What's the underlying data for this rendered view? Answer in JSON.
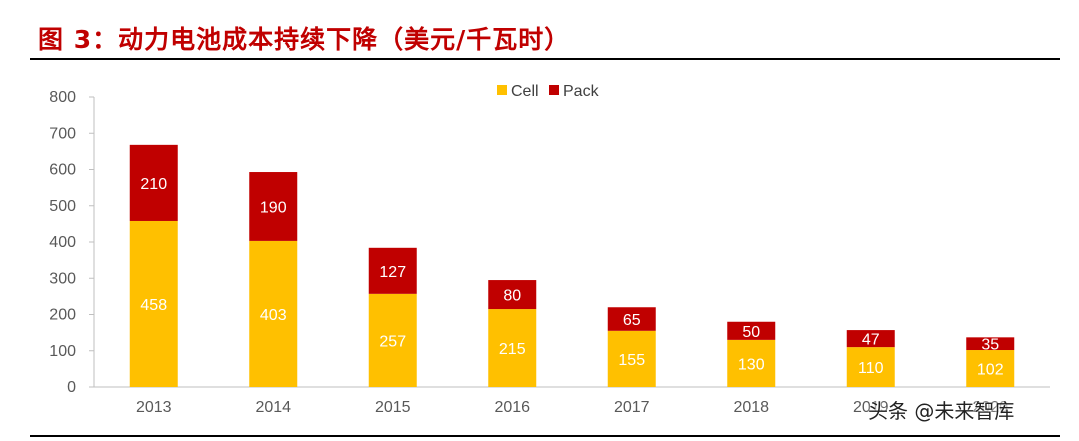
{
  "header": {
    "title": "图 3：动力电池成本持续下降（美元/千瓦时）"
  },
  "watermark": {
    "text": "头条 @未来智库"
  },
  "chart_data": {
    "type": "bar",
    "stacked": true,
    "categories": [
      "2013",
      "2014",
      "2015",
      "2016",
      "2017",
      "2018",
      "2019",
      "2020"
    ],
    "series": [
      {
        "name": "Cell",
        "values": [
          458,
          403,
          257,
          215,
          155,
          130,
          110,
          102
        ],
        "color": "#ffc000"
      },
      {
        "name": "Pack",
        "values": [
          210,
          190,
          127,
          80,
          65,
          50,
          47,
          35
        ],
        "color": "#c00000"
      }
    ],
    "ylim": [
      0,
      800
    ],
    "yticks": [
      0,
      100,
      200,
      300,
      400,
      500,
      600,
      700,
      800
    ],
    "xlabel": "",
    "ylabel": "",
    "grid": false,
    "legend": "top-center"
  }
}
